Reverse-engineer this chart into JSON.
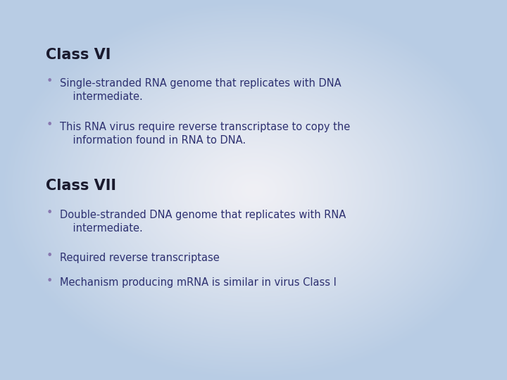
{
  "bg_outer_color": "#b8cce4",
  "bg_center_color": "#f0f0f5",
  "title1": "Class VI",
  "title2": "Class VII",
  "title_color": "#1a1a2e",
  "title_fontsize": 15,
  "bullet_color": "#2d3070",
  "bullet_fontsize": 10.5,
  "bullet_marker_color": "#8878b0",
  "bullets_vi_line1": "Single-stranded RNA genome that replicates with DNA",
  "bullets_vi_line1b": "    intermediate.",
  "bullets_vi_line2": "This RNA virus require reverse transcriptase to copy the",
  "bullets_vi_line2b": "    information found in RNA to DNA.",
  "bullets_vii_line1": "Double-stranded DNA genome that replicates with RNA",
  "bullets_vii_line1b": "    intermediate.",
  "bullets_vii_line2": "Required reverse transcriptase",
  "bullets_vii_line3": "Mechanism producing mRNA is similar in virus Class I",
  "figsize": [
    7.2,
    5.4
  ],
  "dpi": 100
}
